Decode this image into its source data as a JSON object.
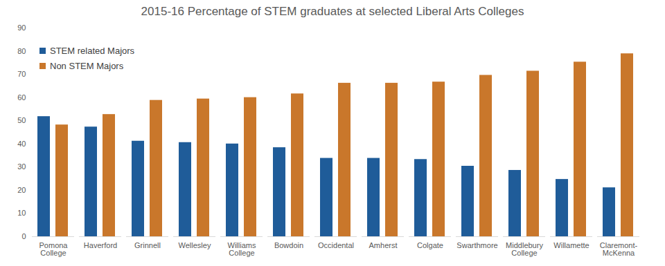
{
  "chart_data": {
    "type": "bar",
    "title": "2015-16 Percentage of STEM graduates at selected  Liberal Arts Colleges",
    "categories": [
      "Pomona College",
      "Haverford",
      "Grinnell",
      "Wellesley",
      "Williams College",
      "Bowdoin",
      "Occidental",
      "Amherst",
      "Colgate",
      "Swarthmore",
      "Middlebury College",
      "Willamette",
      "Claremont-McKenna"
    ],
    "series": [
      {
        "name": "STEM related Majors",
        "color": "#1f5c99",
        "values": [
          51.8,
          47.3,
          41.2,
          40.6,
          40.0,
          38.4,
          33.8,
          33.8,
          33.3,
          30.4,
          28.6,
          24.7,
          21.1
        ]
      },
      {
        "name": "Non STEM Majors",
        "color": "#c9772b",
        "values": [
          48.2,
          52.7,
          58.8,
          59.4,
          60.0,
          61.6,
          66.2,
          66.2,
          66.7,
          69.6,
          71.4,
          75.3,
          78.9
        ]
      }
    ],
    "ylim": [
      0,
      90
    ],
    "yticks": [
      0,
      10,
      20,
      30,
      40,
      50,
      60,
      70,
      80,
      90
    ],
    "grid": false,
    "legend": "top-left"
  }
}
